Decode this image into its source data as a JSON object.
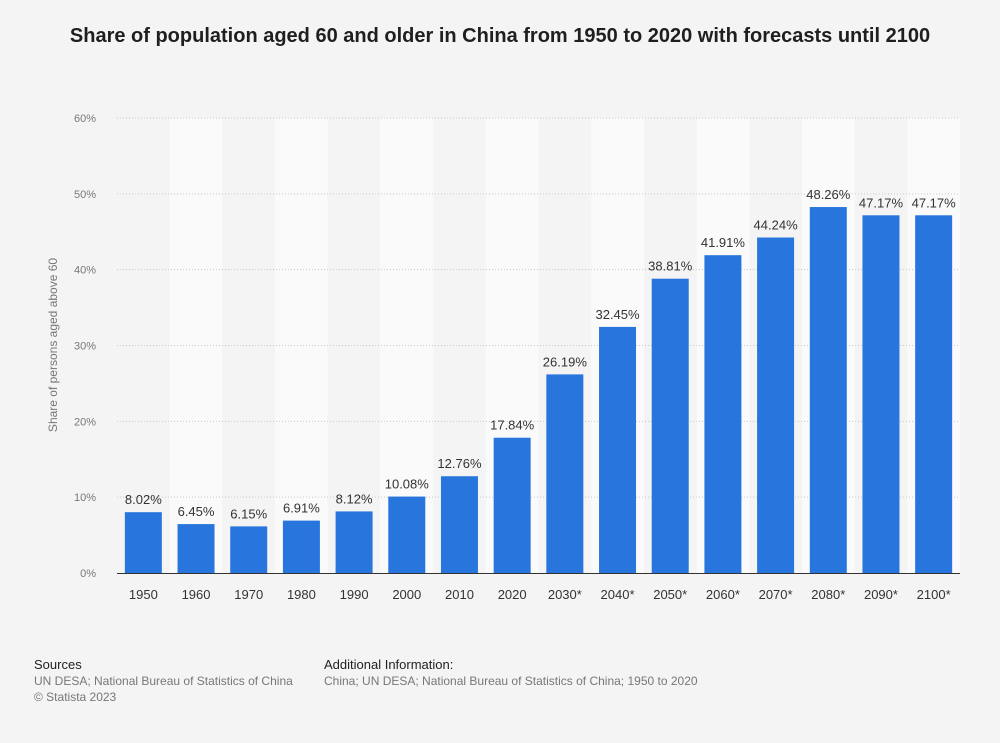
{
  "chart_data": {
    "type": "bar",
    "title": "Share of population aged 60 and older in China from 1950 to 2020 with forecasts until 2100",
    "xlabel": "",
    "ylabel": "Share of persons aged above 60",
    "categories": [
      "1950",
      "1960",
      "1970",
      "1980",
      "1990",
      "2000",
      "2010",
      "2020",
      "2030*",
      "2040*",
      "2050*",
      "2060*",
      "2070*",
      "2080*",
      "2090*",
      "2100*"
    ],
    "values": [
      8.02,
      6.45,
      6.15,
      6.91,
      8.12,
      10.08,
      12.76,
      17.84,
      26.19,
      32.45,
      38.81,
      41.91,
      44.24,
      48.26,
      47.17,
      47.17
    ],
    "value_labels": [
      "8.02%",
      "6.45%",
      "6.15%",
      "6.91%",
      "8.12%",
      "10.08%",
      "12.76%",
      "17.84%",
      "26.19%",
      "32.45%",
      "38.81%",
      "41.91%",
      "44.24%",
      "48.26%",
      "47.17%",
      "47.17%"
    ],
    "ylim": [
      0,
      60
    ],
    "yticks": [
      0,
      10,
      20,
      30,
      40,
      50,
      60
    ],
    "ytick_labels": [
      "0%",
      "10%",
      "20%",
      "30%",
      "40%",
      "50%",
      "60%"
    ],
    "grid": true,
    "bar_color": "#2876dd"
  },
  "footer": {
    "sources_heading": "Sources",
    "sources_line1": "UN DESA; National Bureau of Statistics of China",
    "sources_line2": "© Statista 2023",
    "info_heading": "Additional Information:",
    "info_line1": "China; UN DESA; National Bureau of Statistics of China; 1950 to 2020"
  }
}
